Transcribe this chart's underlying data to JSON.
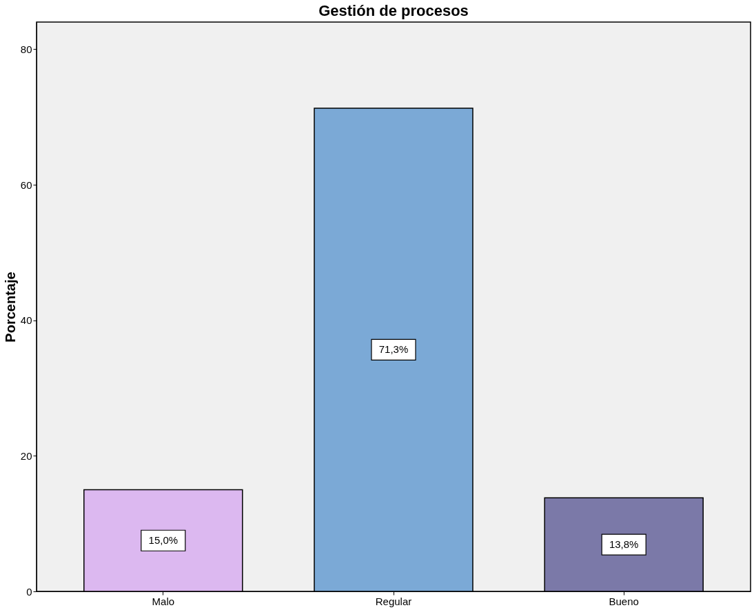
{
  "chart_data": {
    "type": "bar",
    "title": "Gestión de procesos",
    "ylabel": "Porcentaje",
    "categories": [
      "Malo",
      "Regular",
      "Bueno"
    ],
    "values": [
      15.0,
      71.3,
      13.8
    ],
    "colors": [
      "#dcb8f0",
      "#7ba9d6",
      "#7b79a8"
    ],
    "value_labels": [
      "15,0%",
      "71,3%",
      "13,8%"
    ],
    "ylim": [
      0,
      84
    ],
    "yticks": [
      0,
      20,
      40,
      60,
      80
    ],
    "grid": false
  }
}
